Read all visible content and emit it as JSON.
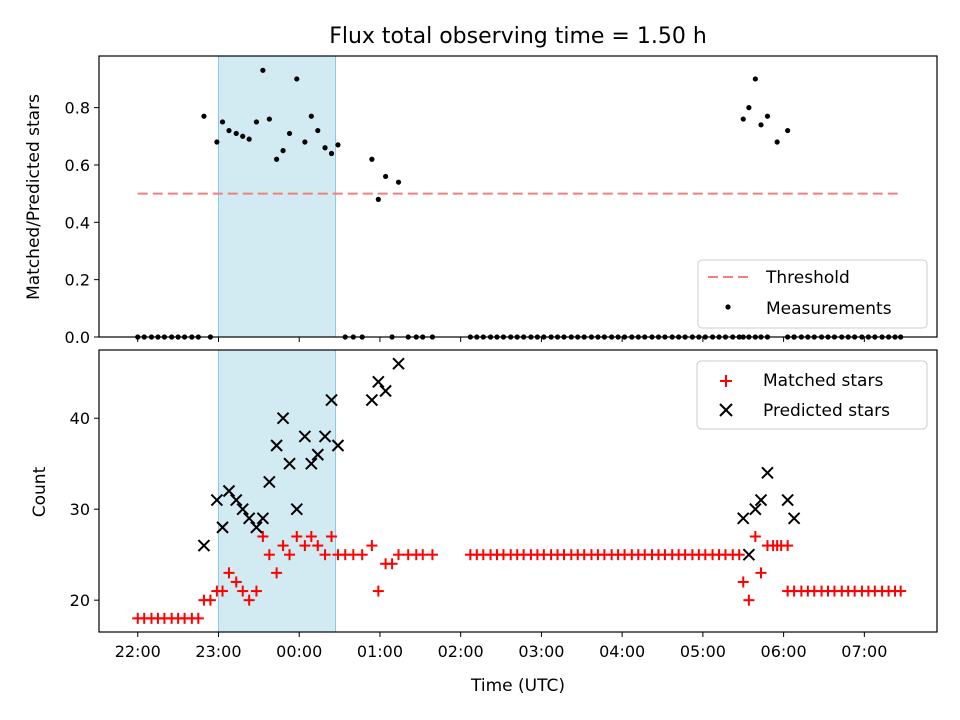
{
  "chart_data": [
    {
      "type": "scatter",
      "title": "Flux total observing time = 1.50 h",
      "xlabel": "",
      "ylabel": "Matched/Predicted stars",
      "ylim": [
        0,
        0.98
      ],
      "yticks": [
        "0.0",
        "0.2",
        "0.4",
        "0.6",
        "0.8"
      ],
      "ytick_values": [
        0,
        0.2,
        0.4,
        0.6,
        0.8
      ],
      "shaded_span_hours": [
        23.0,
        24.45
      ],
      "shade_color": "#add8e6",
      "legend_position": "lower right",
      "threshold": {
        "name": "Threshold",
        "value": 0.5,
        "x_range_hours": [
          22.0,
          31.45
        ],
        "color": "#f08080",
        "style": "dashed"
      },
      "series": [
        {
          "name": "Measurements",
          "color": "#000000",
          "x_hours": [
            22.0,
            22.08,
            22.17,
            22.25,
            22.33,
            22.42,
            22.5,
            22.58,
            22.67,
            22.75,
            22.82,
            22.9,
            22.98,
            23.05,
            23.13,
            23.22,
            23.3,
            23.38,
            23.47,
            23.55,
            23.63,
            23.72,
            23.8,
            23.88,
            23.97,
            24.07,
            24.15,
            24.23,
            24.32,
            24.4,
            24.48,
            24.57,
            24.67,
            24.78,
            24.9,
            24.98,
            25.07,
            25.15,
            25.23,
            25.35,
            25.45,
            25.53,
            25.65,
            26.12,
            26.2,
            26.28,
            26.37,
            26.45,
            26.53,
            26.62,
            26.7,
            26.78,
            26.87,
            26.95,
            27.03,
            27.12,
            27.2,
            27.28,
            27.37,
            27.45,
            27.53,
            27.62,
            27.7,
            27.78,
            27.87,
            27.95,
            28.03,
            28.12,
            28.2,
            28.28,
            28.37,
            28.45,
            28.53,
            28.62,
            28.7,
            28.78,
            28.87,
            28.95,
            29.03,
            29.12,
            29.2,
            29.28,
            29.37,
            29.45,
            29.5,
            29.57,
            29.65,
            29.72,
            29.8,
            29.92,
            30.05,
            30.13,
            30.22,
            30.3,
            30.38,
            30.47,
            30.55,
            30.63,
            30.72,
            30.8,
            30.88,
            30.97,
            31.05,
            31.13,
            31.22,
            31.3,
            31.38,
            31.45,
            29.5,
            29.57,
            29.65,
            29.72,
            29.8,
            30.05,
            30.13
          ],
          "y": [
            0,
            0,
            0,
            0,
            0,
            0,
            0,
            0,
            0,
            0,
            0.77,
            0,
            0.68,
            0.75,
            0.72,
            0.71,
            0.7,
            0.69,
            0.75,
            0.93,
            0.76,
            0.62,
            0.65,
            0.71,
            0.9,
            0.68,
            0.77,
            0.72,
            0.66,
            0.64,
            0.67,
            0,
            0,
            0,
            0.62,
            0.48,
            0.56,
            0,
            0.54,
            0,
            0,
            0,
            0,
            0,
            0,
            0,
            0,
            0,
            0,
            0,
            0,
            0,
            0,
            0,
            0,
            0,
            0,
            0,
            0,
            0,
            0,
            0,
            0,
            0,
            0,
            0,
            0,
            0,
            0,
            0,
            0,
            0,
            0,
            0,
            0,
            0,
            0,
            0,
            0,
            0,
            0,
            0,
            0,
            0,
            0.76,
            0.8,
            0.9,
            0.74,
            0.77,
            0.68,
            0.72,
            0,
            0,
            0,
            0,
            0,
            0,
            0,
            0,
            0,
            0,
            0,
            0,
            0,
            0,
            0,
            0,
            0,
            0,
            0,
            0,
            0,
            0,
            0,
            0
          ]
        }
      ]
    },
    {
      "type": "scatter",
      "xlabel": "Time (UTC)",
      "ylabel": "Count",
      "ylim": [
        16.5,
        47.5
      ],
      "yticks": [
        "20",
        "30",
        "40"
      ],
      "ytick_values": [
        20,
        30,
        40
      ],
      "xlim_hours": [
        21.52,
        31.9
      ],
      "xticks": [
        "22:00",
        "23:00",
        "00:00",
        "01:00",
        "02:00",
        "03:00",
        "04:00",
        "05:00",
        "06:00",
        "07:00"
      ],
      "xtick_values_hours": [
        22,
        23,
        24,
        25,
        26,
        27,
        28,
        29,
        30,
        31
      ],
      "shaded_span_hours": [
        23.0,
        24.45
      ],
      "legend_position": "upper right",
      "series": [
        {
          "name": "Matched stars",
          "marker": "+",
          "color": "#ff0000",
          "x_hours": [
            22.0,
            22.08,
            22.17,
            22.25,
            22.33,
            22.42,
            22.5,
            22.58,
            22.67,
            22.75,
            22.82,
            22.9,
            22.98,
            23.05,
            23.13,
            23.22,
            23.3,
            23.38,
            23.47,
            23.55,
            23.63,
            23.72,
            23.8,
            23.88,
            23.97,
            24.07,
            24.15,
            24.23,
            24.32,
            24.4,
            24.48,
            24.57,
            24.67,
            24.78,
            24.9,
            24.98,
            25.07,
            25.15,
            25.23,
            25.35,
            25.45,
            25.53,
            25.65,
            26.12,
            26.2,
            26.28,
            26.37,
            26.45,
            26.53,
            26.62,
            26.7,
            26.78,
            26.87,
            26.95,
            27.03,
            27.12,
            27.2,
            27.28,
            27.37,
            27.45,
            27.53,
            27.62,
            27.7,
            27.78,
            27.87,
            27.95,
            28.03,
            28.12,
            28.2,
            28.28,
            28.37,
            28.45,
            28.53,
            28.62,
            28.7,
            28.78,
            28.87,
            28.95,
            29.03,
            29.12,
            29.2,
            29.28,
            29.37,
            29.45,
            29.5,
            29.57,
            29.65,
            29.72,
            29.8,
            29.92,
            30.05,
            30.13,
            30.22,
            30.3,
            30.38,
            30.47,
            30.55,
            30.63,
            30.72,
            30.8,
            30.88,
            30.97,
            31.05,
            31.13,
            31.22,
            31.3,
            31.38,
            31.45,
            29.87,
            29.97,
            30.05
          ],
          "y": [
            18,
            18,
            18,
            18,
            18,
            18,
            18,
            18,
            18,
            18,
            20,
            20,
            21,
            21,
            23,
            22,
            21,
            20,
            21,
            27,
            25,
            23,
            26,
            25,
            27,
            26,
            27,
            26,
            25,
            27,
            25,
            25,
            25,
            25,
            26,
            21,
            24,
            24,
            25,
            25,
            25,
            25,
            25,
            25,
            25,
            25,
            25,
            25,
            25,
            25,
            25,
            25,
            25,
            25,
            25,
            25,
            25,
            25,
            25,
            25,
            25,
            25,
            25,
            25,
            25,
            25,
            25,
            25,
            25,
            25,
            25,
            25,
            25,
            25,
            25,
            25,
            25,
            25,
            25,
            25,
            25,
            25,
            25,
            25,
            22,
            20,
            27,
            23,
            26,
            26,
            21,
            21,
            21,
            21,
            21,
            21,
            21,
            21,
            21,
            21,
            21,
            21,
            21,
            21,
            21,
            21,
            21,
            21,
            26,
            26,
            26
          ]
        },
        {
          "name": "Predicted stars",
          "marker": "x",
          "color": "#000000",
          "x_hours": [
            22.82,
            22.98,
            23.05,
            23.13,
            23.22,
            23.3,
            23.38,
            23.47,
            23.55,
            23.63,
            23.72,
            23.8,
            23.88,
            23.97,
            24.07,
            24.15,
            24.23,
            24.32,
            24.4,
            24.48,
            24.9,
            24.98,
            25.07,
            25.23,
            29.5,
            29.57,
            29.65,
            29.72,
            29.8,
            30.05,
            30.13
          ],
          "y": [
            26,
            31,
            28,
            32,
            31,
            30,
            29,
            28,
            29,
            33,
            37,
            40,
            35,
            30,
            38,
            35,
            36,
            38,
            42,
            37,
            42,
            44,
            43,
            46,
            29,
            25,
            30,
            31,
            34,
            31,
            29
          ]
        }
      ]
    }
  ]
}
